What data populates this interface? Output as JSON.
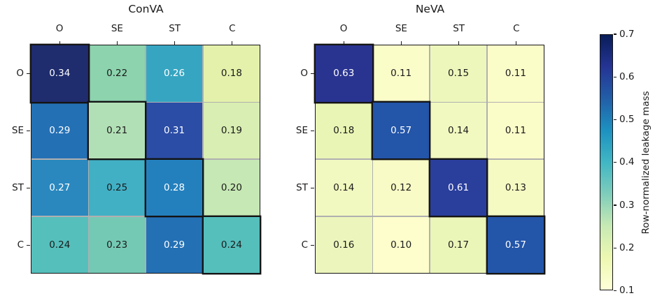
{
  "figure": {
    "colorbar": {
      "label": "Row-normalized leakage mass",
      "ticks": [
        "0.7",
        "0.6",
        "0.5",
        "0.4",
        "0.3",
        "0.2",
        "0.1"
      ],
      "gradient_stops_top_to_bottom": [
        "#081d58",
        "#253494",
        "#225ea8",
        "#1d91c0",
        "#41b6c4",
        "#7fcdbb",
        "#c7e9b4",
        "#edf8b1",
        "#ffffd9"
      ],
      "outline_color": "#141414"
    },
    "annot_black_color": "#1a1a1a",
    "annot_white_color": "#ffffff",
    "gridline_color": "#b0b0b0",
    "diagonal_outline_color": "#141414"
  },
  "chart_data": {
    "type": "heatmap",
    "colormap": "YlGnBu",
    "value_range": [
      0.1,
      0.7
    ],
    "categories": [
      "O",
      "SE",
      "ST",
      "C"
    ],
    "colorbar_label": "Row-normalized leakage mass",
    "matrices": [
      {
        "title": "ConVA",
        "row_labels": [
          "O",
          "SE",
          "ST",
          "C"
        ],
        "col_labels": [
          "O",
          "SE",
          "ST",
          "C"
        ],
        "values": [
          [
            0.34,
            0.22,
            0.26,
            0.18
          ],
          [
            0.29,
            0.21,
            0.31,
            0.19
          ],
          [
            0.27,
            0.25,
            0.28,
            0.2
          ],
          [
            0.24,
            0.23,
            0.29,
            0.24
          ]
        ],
        "cell_colors": [
          [
            "#1f2c6e",
            "#8cd3ae",
            "#36a5c1",
            "#e4f1ab"
          ],
          [
            "#2470b5",
            "#b2e0b6",
            "#2b4da6",
            "#d8eeb2"
          ],
          [
            "#2a88bf",
            "#41b0c5",
            "#2480bd",
            "#c6e8b4"
          ],
          [
            "#55bfbc",
            "#74c9b4",
            "#2470b5",
            "#55bfbc"
          ]
        ],
        "annot_white": [
          [
            true,
            false,
            true,
            false
          ],
          [
            true,
            false,
            true,
            false
          ],
          [
            true,
            false,
            true,
            false
          ],
          [
            false,
            false,
            true,
            false
          ]
        ],
        "diagonal_outlined": true
      },
      {
        "title": "NeVA",
        "row_labels": [
          "O",
          "SE",
          "ST",
          "C"
        ],
        "col_labels": [
          "O",
          "SE",
          "ST",
          "C"
        ],
        "values": [
          [
            0.63,
            0.11,
            0.15,
            0.11
          ],
          [
            0.18,
            0.57,
            0.14,
            0.11
          ],
          [
            0.14,
            0.12,
            0.61,
            0.13
          ],
          [
            0.16,
            0.1,
            0.17,
            0.57
          ]
        ],
        "cell_colors": [
          [
            "#293491",
            "#fbfdc9",
            "#eef7bb",
            "#fbfdc9"
          ],
          [
            "#e9f5b5",
            "#2355a9",
            "#f2f9c0",
            "#fbfdc9"
          ],
          [
            "#f2f9c0",
            "#f8fbc5",
            "#2a3f9c",
            "#f5fac2"
          ],
          [
            "#ecf6bc",
            "#fdfecb",
            "#eaf5b8",
            "#2355a9"
          ]
        ],
        "annot_white": [
          [
            true,
            false,
            false,
            false
          ],
          [
            false,
            true,
            false,
            false
          ],
          [
            false,
            false,
            true,
            false
          ],
          [
            false,
            false,
            false,
            true
          ]
        ],
        "diagonal_outlined": true
      }
    ]
  }
}
